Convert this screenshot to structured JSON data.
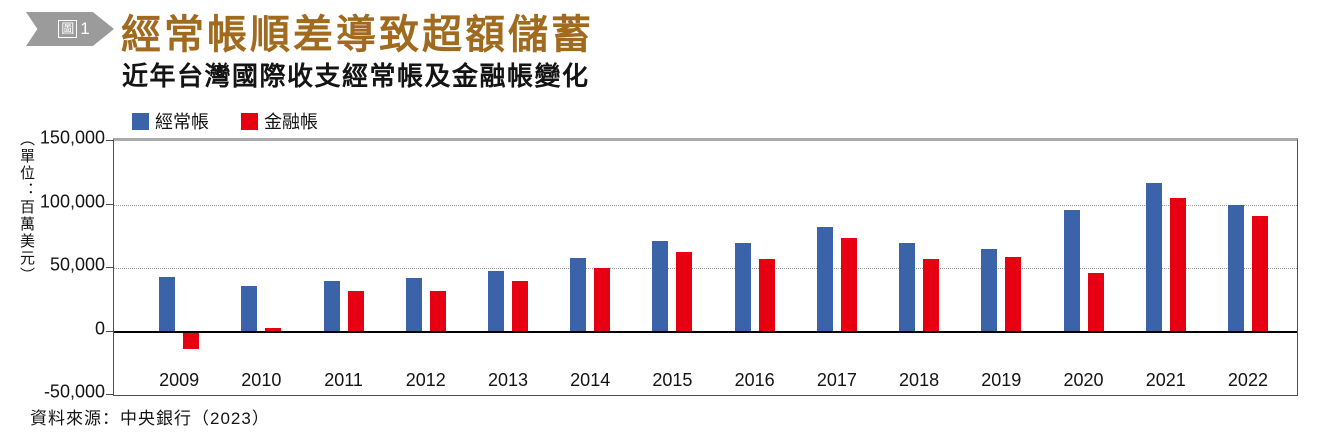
{
  "figure": {
    "badge": {
      "boxed_char": "圖",
      "number": "1"
    },
    "title": "經常帳順差導致超額儲蓄",
    "subtitle": "近年台灣國際收支經常帳及金融帳變化",
    "source": "資料來源：中央銀行（2023）"
  },
  "colors": {
    "title_text": "#a06a1f",
    "badge_bg": "#9b9b9b",
    "current_account_blue": "#3a63a9",
    "financial_account_red": "#e60012",
    "gridline_gray": "#9a9a9a",
    "zero_axis_black": "#000000"
  },
  "chart_data": {
    "type": "bar",
    "title": "近年台灣國際收支經常帳及金融帳變化",
    "unit_label": "（單位：百萬美元）",
    "xlabel": "",
    "ylabel": "百萬美元",
    "categories": [
      "2009",
      "2010",
      "2011",
      "2012",
      "2013",
      "2014",
      "2015",
      "2016",
      "2017",
      "2018",
      "2019",
      "2020",
      "2021",
      "2022"
    ],
    "series": [
      {
        "name": "經常帳",
        "color": "#3a63a9",
        "values": [
          43000,
          36000,
          40000,
          42000,
          48000,
          58000,
          71000,
          70000,
          82000,
          70000,
          65000,
          96000,
          117000,
          100000
        ]
      },
      {
        "name": "金融帳",
        "color": "#e60012",
        "values": [
          -14000,
          3000,
          32000,
          32000,
          40000,
          50000,
          63000,
          57000,
          74000,
          57000,
          59000,
          46000,
          105000,
          91000
        ]
      }
    ],
    "ylim": [
      -50000,
      150000
    ],
    "yticks": [
      150000,
      100000,
      50000,
      0,
      -50000
    ],
    "ytick_labels": [
      "150,000",
      "100,000",
      "50,000",
      "0",
      "-50,000"
    ],
    "grid": "dotted horizontal gridlines at 50,000 and 100,000; solid black zero baseline",
    "legend_position": "top-left"
  }
}
